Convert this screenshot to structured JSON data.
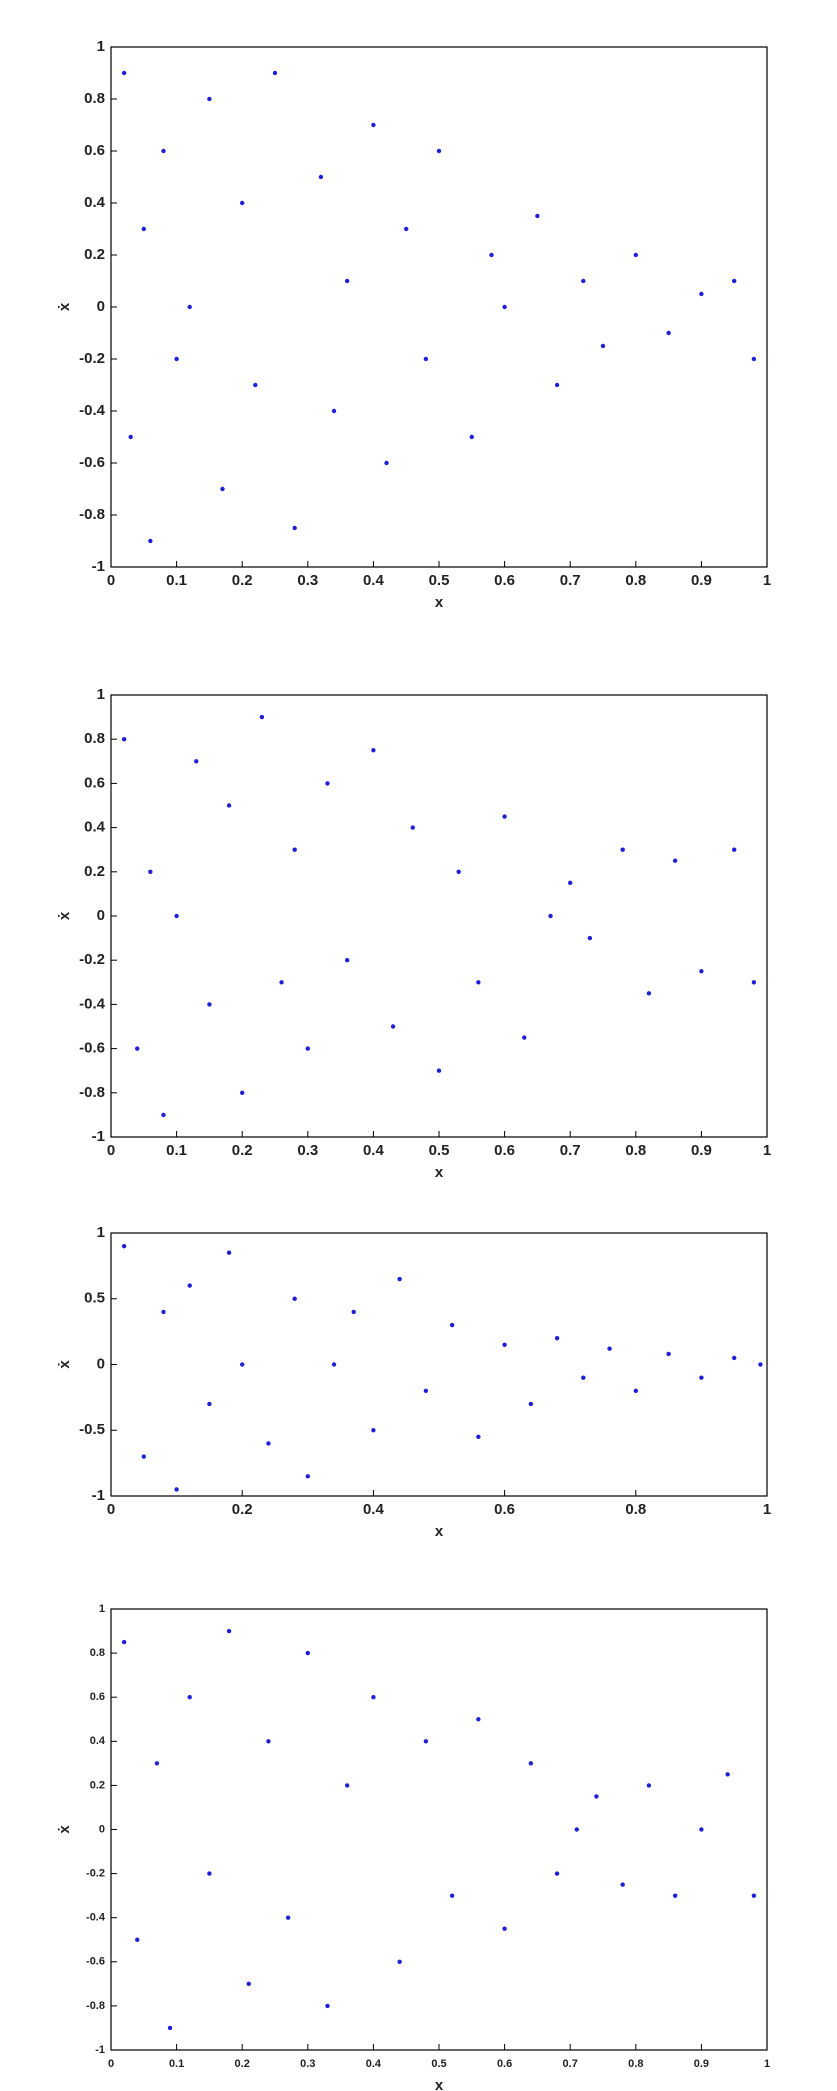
{
  "chart_data": [
    {
      "type": "scatter",
      "xlabel": "x",
      "ylabel": "ẋ",
      "xlim": [
        0,
        1
      ],
      "ylim": [
        -1,
        1
      ],
      "xticks": [
        0,
        0.1,
        0.2,
        0.3,
        0.4,
        0.5,
        0.6,
        0.7,
        0.8,
        0.9,
        1
      ],
      "yticks": [
        -1,
        -0.8,
        -0.6,
        -0.4,
        -0.2,
        0,
        0.2,
        0.4,
        0.6,
        0.8,
        1
      ],
      "series": [
        {
          "color": "#1f1fd6",
          "x": [
            0.02,
            0.03,
            0.05,
            0.06,
            0.08,
            0.1,
            0.12,
            0.15,
            0.17,
            0.2,
            0.22,
            0.25,
            0.28,
            0.32,
            0.34,
            0.36,
            0.4,
            0.42,
            0.45,
            0.48,
            0.5,
            0.55,
            0.58,
            0.6,
            0.65,
            0.68,
            0.72,
            0.75,
            0.8,
            0.85,
            0.9,
            0.95,
            0.98
          ],
          "y": [
            0.9,
            -0.5,
            0.3,
            -0.9,
            0.6,
            -0.2,
            0,
            0.8,
            -0.7,
            0.4,
            -0.3,
            0.9,
            -0.85,
            0.5,
            -0.4,
            0.1,
            0.7,
            -0.6,
            0.3,
            -0.2,
            0.6,
            -0.5,
            0.2,
            0,
            0.35,
            -0.3,
            0.1,
            -0.15,
            0.2,
            -0.1,
            0.05,
            0.1,
            -0.2
          ]
        }
      ]
    },
    {
      "type": "scatter",
      "xlabel": "x",
      "ylabel": "ẋ",
      "xlim": [
        0,
        1
      ],
      "ylim": [
        -1,
        1
      ],
      "xticks": [
        0,
        0.1,
        0.2,
        0.3,
        0.4,
        0.5,
        0.6,
        0.7,
        0.8,
        0.9,
        1
      ],
      "yticks": [
        -1,
        -0.8,
        -0.6,
        -0.4,
        -0.2,
        0,
        0.2,
        0.4,
        0.6,
        0.8,
        1
      ],
      "series": [
        {
          "color": "#1f1fd6",
          "x": [
            0.02,
            0.04,
            0.06,
            0.08,
            0.1,
            0.13,
            0.15,
            0.18,
            0.2,
            0.23,
            0.26,
            0.28,
            0.3,
            0.33,
            0.36,
            0.4,
            0.43,
            0.46,
            0.5,
            0.53,
            0.56,
            0.6,
            0.63,
            0.67,
            0.7,
            0.73,
            0.78,
            0.82,
            0.86,
            0.9,
            0.95,
            0.98
          ],
          "y": [
            0.8,
            -0.6,
            0.2,
            -0.9,
            0,
            0.7,
            -0.4,
            0.5,
            -0.8,
            0.9,
            -0.3,
            0.3,
            -0.6,
            0.6,
            -0.2,
            0.75,
            -0.5,
            0.4,
            -0.7,
            0.2,
            -0.3,
            0.45,
            -0.55,
            0,
            0.15,
            -0.1,
            0.3,
            -0.35,
            0.25,
            -0.25,
            0.3,
            -0.3
          ]
        }
      ]
    },
    {
      "type": "scatter",
      "xlabel": "x",
      "ylabel": "ẋ",
      "xlim": [
        0,
        1
      ],
      "ylim": [
        -1,
        1
      ],
      "xticks": [
        0,
        0.2,
        0.4,
        0.6,
        0.8,
        1
      ],
      "yticks": [
        -1,
        -0.5,
        0,
        0.5,
        1
      ],
      "series": [
        {
          "color": "#1f1fd6",
          "x": [
            0.02,
            0.05,
            0.08,
            0.1,
            0.12,
            0.15,
            0.18,
            0.2,
            0.24,
            0.28,
            0.3,
            0.34,
            0.37,
            0.4,
            0.44,
            0.48,
            0.52,
            0.56,
            0.6,
            0.64,
            0.68,
            0.72,
            0.76,
            0.8,
            0.85,
            0.9,
            0.95,
            0.99
          ],
          "y": [
            0.9,
            -0.7,
            0.4,
            -0.95,
            0.6,
            -0.3,
            0.85,
            0,
            -0.6,
            0.5,
            -0.85,
            0,
            0.4,
            -0.5,
            0.65,
            -0.2,
            0.3,
            -0.55,
            0.15,
            -0.3,
            0.2,
            -0.1,
            0.12,
            -0.2,
            0.08,
            -0.1,
            0.05,
            0
          ]
        }
      ]
    },
    {
      "type": "scatter",
      "xlabel": "x",
      "ylabel": "ẋ",
      "xlim": [
        0,
        1
      ],
      "ylim": [
        -1,
        1
      ],
      "xticks": [
        0,
        0.1,
        0.2,
        0.3,
        0.4,
        0.5,
        0.6,
        0.7,
        0.8,
        0.9,
        1
      ],
      "yticks": [
        -1,
        -0.8,
        -0.6,
        -0.4,
        -0.2,
        0,
        0.2,
        0.4,
        0.6,
        0.8,
        1
      ],
      "series": [
        {
          "color": "#1f1fd6",
          "x": [
            0.02,
            0.04,
            0.07,
            0.09,
            0.12,
            0.15,
            0.18,
            0.21,
            0.24,
            0.27,
            0.3,
            0.33,
            0.36,
            0.4,
            0.44,
            0.48,
            0.52,
            0.56,
            0.6,
            0.64,
            0.68,
            0.71,
            0.74,
            0.78,
            0.82,
            0.86,
            0.9,
            0.94,
            0.98
          ],
          "y": [
            0.85,
            -0.5,
            0.3,
            -0.9,
            0.6,
            -0.2,
            0.9,
            -0.7,
            0.4,
            -0.4,
            0.8,
            -0.8,
            0.2,
            0.6,
            -0.6,
            0.4,
            -0.3,
            0.5,
            -0.45,
            0.3,
            -0.2,
            0,
            0.15,
            -0.25,
            0.2,
            -0.3,
            0,
            0.25,
            -0.3
          ]
        }
      ]
    }
  ]
}
